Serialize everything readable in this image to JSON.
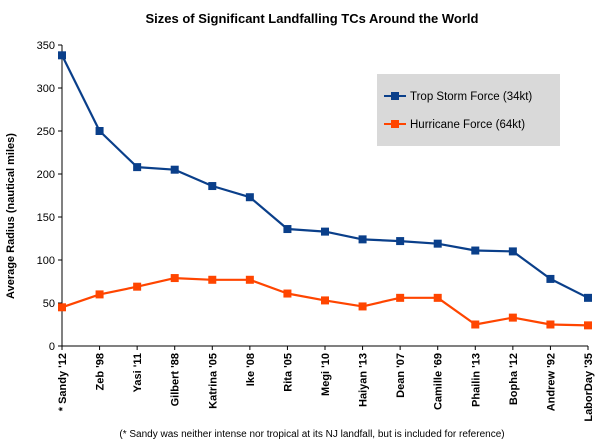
{
  "chart_data": {
    "type": "line",
    "title": "Sizes of Significant Landfalling TCs Around the World",
    "xlabel": "",
    "ylabel": "Average Radius (nautical miles)",
    "ylim": [
      0,
      350
    ],
    "yticks": [
      0,
      50,
      100,
      150,
      200,
      250,
      300,
      350
    ],
    "grid": false,
    "legend_position": "top-right",
    "categories": [
      "* Sandy '12",
      "Zeb '98",
      "Yasi '11",
      "Gilbert '88",
      "Katrina '05",
      "Ike '08",
      "Rita '05",
      "Megi '10",
      "Haiyan '13",
      "Dean '07",
      "Camille '69",
      "Phailin '13",
      "Bopha '12",
      "Andrew '92",
      "LaborDay '35"
    ],
    "series": [
      {
        "name": "Trop Storm Force (34kt)",
        "color": "#0a3f8a",
        "values": [
          338,
          250,
          208,
          205,
          186,
          173,
          136,
          133,
          124,
          122,
          119,
          111,
          110,
          78,
          56
        ]
      },
      {
        "name": "Hurricane Force (64kt)",
        "color": "#ff4500",
        "values": [
          45,
          60,
          69,
          79,
          77,
          77,
          61,
          53,
          46,
          56,
          56,
          25,
          33,
          25,
          24
        ]
      }
    ],
    "footnote": "(* Sandy was neither intense nor tropical at its NJ landfall, but is included for reference)"
  }
}
